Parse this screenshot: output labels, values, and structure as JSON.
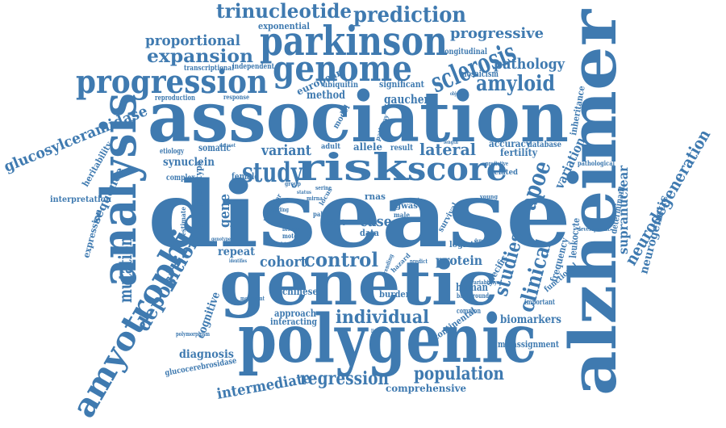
{
  "color": "#3f7ab0",
  "background": "#ffffff",
  "words": [
    "disease",
    "alzheimer",
    "association",
    "polygenic",
    "genetic",
    "parkinson",
    "genome",
    "analysis",
    "progression",
    "risk",
    "score",
    "amyotrophic",
    "study",
    "sclerosis",
    "amyloid",
    "trinucleotide",
    "prediction",
    "apoe",
    "clinical",
    "studies",
    "deposition",
    "neurodegeneration",
    "expansion",
    "proportional",
    "progressive",
    "pathology",
    "glucosylceramidase",
    "mutation",
    "control",
    "individual",
    "population",
    "regression",
    "intermediate",
    "comprehensive",
    "cohort",
    "variant",
    "lateral",
    "supranuclear",
    "neurogenetic",
    "sequence",
    "synuclein",
    "diagnosis",
    "cognitive",
    "case",
    "gene",
    "protein",
    "repeat",
    "accuracy",
    "fertility",
    "variation",
    "gaucher",
    "method",
    "european",
    "exponential",
    "phenotype",
    "somatic",
    "biomarkers",
    "human",
    "continental",
    "specific",
    "heritability",
    "expression",
    "interpretation",
    "inheritance",
    "misassignment",
    "leukocyte",
    "determinant",
    "frequency",
    "functional",
    "burden",
    "chinese",
    "approach",
    "interacting",
    "glucocerebrosidase",
    "mosaicism",
    "significant",
    "ubiquitin",
    "longitudinal",
    "transcriptional",
    "independent",
    "reproduction",
    "response",
    "etiology",
    "complex",
    "female",
    "database",
    "related",
    "survival",
    "logistic",
    "data",
    "model",
    "allele",
    "adult",
    "result",
    "effect",
    "rnas",
    "gwas",
    "male",
    "young",
    "motor",
    "palsy",
    "britain",
    "kinase",
    "mirna",
    "serine",
    "group",
    "coding",
    "molecular",
    "pathway",
    "objective",
    "length",
    "predictive",
    "important",
    "common",
    "background",
    "variability",
    "development",
    "pathological",
    "estimate",
    "polymorphism",
    "movement",
    "hazard",
    "trending",
    "predict",
    "dementia",
    "locus",
    "status",
    "genotype",
    "identifies",
    "linear",
    "dataset",
    "meta"
  ]
}
